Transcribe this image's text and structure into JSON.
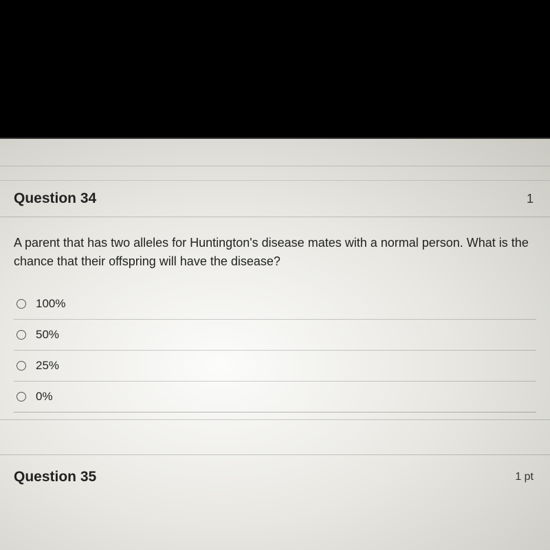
{
  "q34": {
    "header": "Question 34",
    "points": "1",
    "prompt": "A parent that has two alleles for Huntington's disease mates with a normal person. What is the chance that their offspring will have the disease?",
    "options": [
      "100%",
      "50%",
      "25%",
      "0%"
    ]
  },
  "q35": {
    "header": "Question 35",
    "points": "1 pt"
  }
}
